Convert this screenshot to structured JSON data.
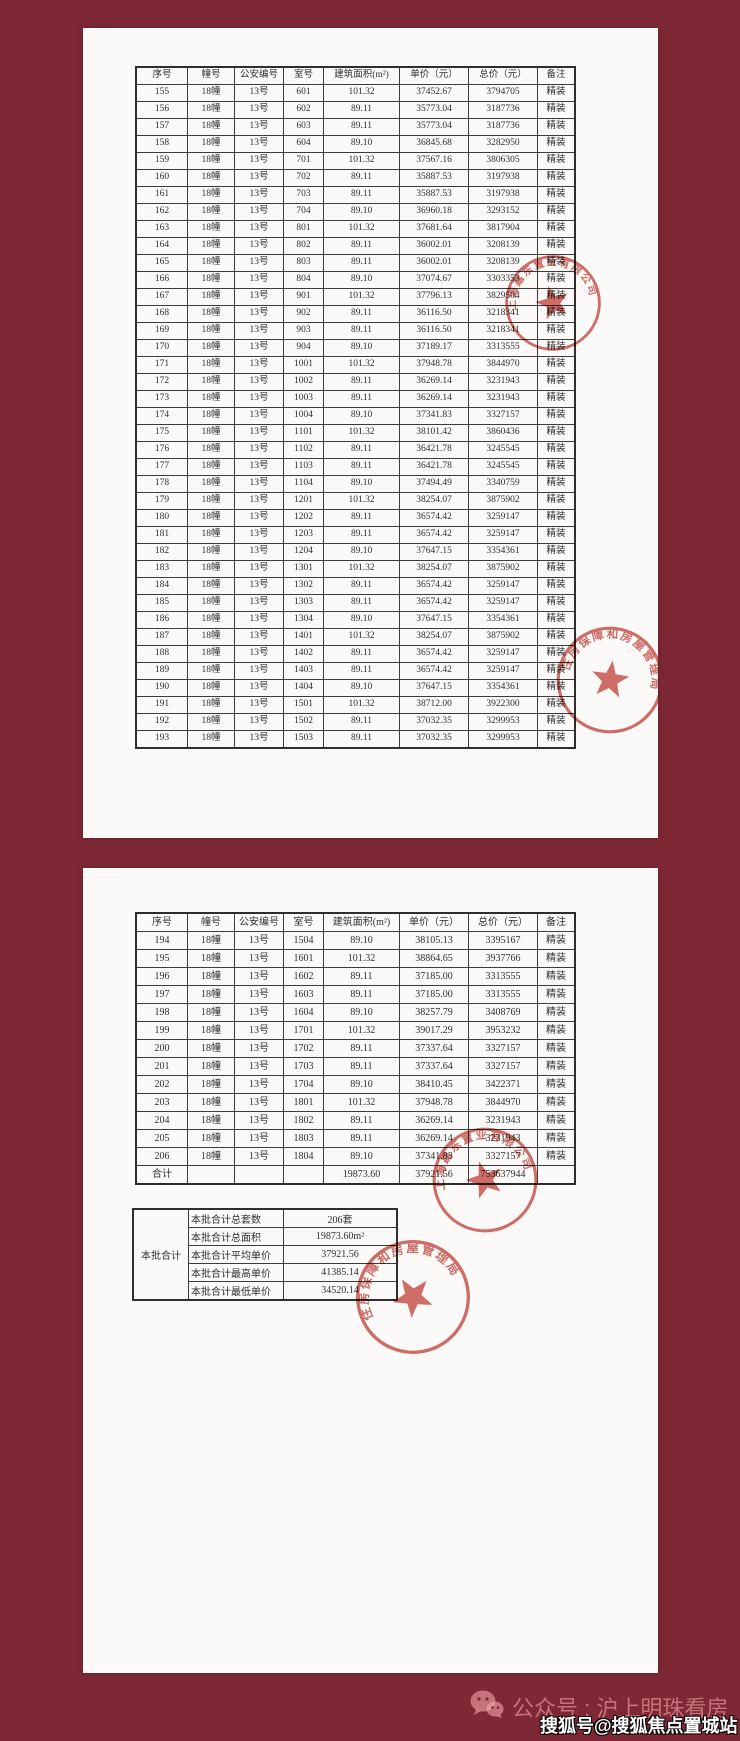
{
  "table": {
    "headers": [
      "序号",
      "幢号",
      "公安编号",
      "室号",
      "建筑面积(m²)",
      "单价（元）",
      "总价（元）",
      "备注"
    ],
    "page1_rows": [
      [
        "155",
        "18幢",
        "13号",
        "601",
        "101.32",
        "37452.67",
        "3794705",
        "精装"
      ],
      [
        "156",
        "18幢",
        "13号",
        "602",
        "89.11",
        "35773.04",
        "3187736",
        "精装"
      ],
      [
        "157",
        "18幢",
        "13号",
        "603",
        "89.11",
        "35773.04",
        "3187736",
        "精装"
      ],
      [
        "158",
        "18幢",
        "13号",
        "604",
        "89.10",
        "36845.68",
        "3282950",
        "精装"
      ],
      [
        "159",
        "18幢",
        "13号",
        "701",
        "101.32",
        "37567.16",
        "3806305",
        "精装"
      ],
      [
        "160",
        "18幢",
        "13号",
        "702",
        "89.11",
        "35887.53",
        "3197938",
        "精装"
      ],
      [
        "161",
        "18幢",
        "13号",
        "703",
        "89.11",
        "35887.53",
        "3197938",
        "精装"
      ],
      [
        "162",
        "18幢",
        "13号",
        "704",
        "89.10",
        "36960.18",
        "3293152",
        "精装"
      ],
      [
        "163",
        "18幢",
        "13号",
        "801",
        "101.32",
        "37681.64",
        "3817904",
        "精装"
      ],
      [
        "164",
        "18幢",
        "13号",
        "802",
        "89.11",
        "36002.01",
        "3208139",
        "精装"
      ],
      [
        "165",
        "18幢",
        "13号",
        "803",
        "89.11",
        "36002.01",
        "3208139",
        "精装"
      ],
      [
        "166",
        "18幢",
        "13号",
        "804",
        "89.10",
        "37074.67",
        "3303353",
        "精装"
      ],
      [
        "167",
        "18幢",
        "13号",
        "901",
        "101.32",
        "37796.13",
        "3829504",
        "精装"
      ],
      [
        "168",
        "18幢",
        "13号",
        "902",
        "89.11",
        "36116.50",
        "3218341",
        "精装"
      ],
      [
        "169",
        "18幢",
        "13号",
        "903",
        "89.11",
        "36116.50",
        "3218341",
        "精装"
      ],
      [
        "170",
        "18幢",
        "13号",
        "904",
        "89.10",
        "37189.17",
        "3313555",
        "精装"
      ],
      [
        "171",
        "18幢",
        "13号",
        "1001",
        "101.32",
        "37948.78",
        "3844970",
        "精装"
      ],
      [
        "172",
        "18幢",
        "13号",
        "1002",
        "89.11",
        "36269.14",
        "3231943",
        "精装"
      ],
      [
        "173",
        "18幢",
        "13号",
        "1003",
        "89.11",
        "36269.14",
        "3231943",
        "精装"
      ],
      [
        "174",
        "18幢",
        "13号",
        "1004",
        "89.10",
        "37341.83",
        "3327157",
        "精装"
      ],
      [
        "175",
        "18幢",
        "13号",
        "1101",
        "101.32",
        "38101.42",
        "3860436",
        "精装"
      ],
      [
        "176",
        "18幢",
        "13号",
        "1102",
        "89.11",
        "36421.78",
        "3245545",
        "精装"
      ],
      [
        "177",
        "18幢",
        "13号",
        "1103",
        "89.11",
        "36421.78",
        "3245545",
        "精装"
      ],
      [
        "178",
        "18幢",
        "13号",
        "1104",
        "89.10",
        "37494.49",
        "3340759",
        "精装"
      ],
      [
        "179",
        "18幢",
        "13号",
        "1201",
        "101.32",
        "38254.07",
        "3875902",
        "精装"
      ],
      [
        "180",
        "18幢",
        "13号",
        "1202",
        "89.11",
        "36574.42",
        "3259147",
        "精装"
      ],
      [
        "181",
        "18幢",
        "13号",
        "1203",
        "89.11",
        "36574.42",
        "3259147",
        "精装"
      ],
      [
        "182",
        "18幢",
        "13号",
        "1204",
        "89.10",
        "37647.15",
        "3354361",
        "精装"
      ],
      [
        "183",
        "18幢",
        "13号",
        "1301",
        "101.32",
        "38254.07",
        "3875902",
        "精装"
      ],
      [
        "184",
        "18幢",
        "13号",
        "1302",
        "89.11",
        "36574.42",
        "3259147",
        "精装"
      ],
      [
        "185",
        "18幢",
        "13号",
        "1303",
        "89.11",
        "36574.42",
        "3259147",
        "精装"
      ],
      [
        "186",
        "18幢",
        "13号",
        "1304",
        "89.10",
        "37647.15",
        "3354361",
        "精装"
      ],
      [
        "187",
        "18幢",
        "13号",
        "1401",
        "101.32",
        "38254.07",
        "3875902",
        "精装"
      ],
      [
        "188",
        "18幢",
        "13号",
        "1402",
        "89.11",
        "36574.42",
        "3259147",
        "精装"
      ],
      [
        "189",
        "18幢",
        "13号",
        "1403",
        "89.11",
        "36574.42",
        "3259147",
        "精装"
      ],
      [
        "190",
        "18幢",
        "13号",
        "1404",
        "89.10",
        "37647.15",
        "3354361",
        "精装"
      ],
      [
        "191",
        "18幢",
        "13号",
        "1501",
        "101.32",
        "38712.00",
        "3922300",
        "精装"
      ],
      [
        "192",
        "18幢",
        "13号",
        "1502",
        "89.11",
        "37032.35",
        "3299953",
        "精装"
      ],
      [
        "193",
        "18幢",
        "13号",
        "1503",
        "89.11",
        "37032.35",
        "3299953",
        "精装"
      ]
    ],
    "page2_rows": [
      [
        "194",
        "18幢",
        "13号",
        "1504",
        "89.10",
        "38105.13",
        "3395167",
        "精装"
      ],
      [
        "195",
        "18幢",
        "13号",
        "1601",
        "101.32",
        "38864.65",
        "3937766",
        "精装"
      ],
      [
        "196",
        "18幢",
        "13号",
        "1602",
        "89.11",
        "37185.00",
        "3313555",
        "精装"
      ],
      [
        "197",
        "18幢",
        "13号",
        "1603",
        "89.11",
        "37185.00",
        "3313555",
        "精装"
      ],
      [
        "198",
        "18幢",
        "13号",
        "1604",
        "89.10",
        "38257.79",
        "3408769",
        "精装"
      ],
      [
        "199",
        "18幢",
        "13号",
        "1701",
        "101.32",
        "39017.29",
        "3953232",
        "精装"
      ],
      [
        "200",
        "18幢",
        "13号",
        "1702",
        "89.11",
        "37337.64",
        "3327157",
        "精装"
      ],
      [
        "201",
        "18幢",
        "13号",
        "1703",
        "89.11",
        "37337.64",
        "3327157",
        "精装"
      ],
      [
        "202",
        "18幢",
        "13号",
        "1704",
        "89.10",
        "38410.45",
        "3422371",
        "精装"
      ],
      [
        "203",
        "18幢",
        "13号",
        "1801",
        "101.32",
        "37948.78",
        "3844970",
        "精装"
      ],
      [
        "204",
        "18幢",
        "13号",
        "1802",
        "89.11",
        "36269.14",
        "3231943",
        "精装"
      ],
      [
        "205",
        "18幢",
        "13号",
        "1803",
        "89.11",
        "36269.14",
        "3231943",
        "精装"
      ],
      [
        "206",
        "18幢",
        "13号",
        "1804",
        "89.10",
        "37341.83",
        "3327157",
        "精装"
      ]
    ],
    "total_row": {
      "label": "合计",
      "area": "19873.60",
      "unit_price": "37921.56",
      "total_price": "753637944"
    }
  },
  "summary": {
    "group_label": "本批合计",
    "rows": [
      {
        "label": "本批合计总套数",
        "value": "206套"
      },
      {
        "label": "本批合计总面积",
        "value": "19873.60m²"
      },
      {
        "label": "本批合计平均单价",
        "value": "37921.56"
      },
      {
        "label": "本批合计最高单价",
        "value": "41385.14"
      },
      {
        "label": "本批合计最低单价",
        "value": "34520.14"
      }
    ]
  },
  "stamps": {
    "company_arc_text": "上海嘉东置业有限公司",
    "authority_arc_text": "住房保障和房屋管理局"
  },
  "footer": {
    "wechat_label": "公众号 : 沪上明珠看房",
    "sohu_watermark": "搜狐号@搜狐焦点置城站"
  },
  "colors": {
    "background": "#7e2836",
    "stamp_red": "#c5453e"
  }
}
